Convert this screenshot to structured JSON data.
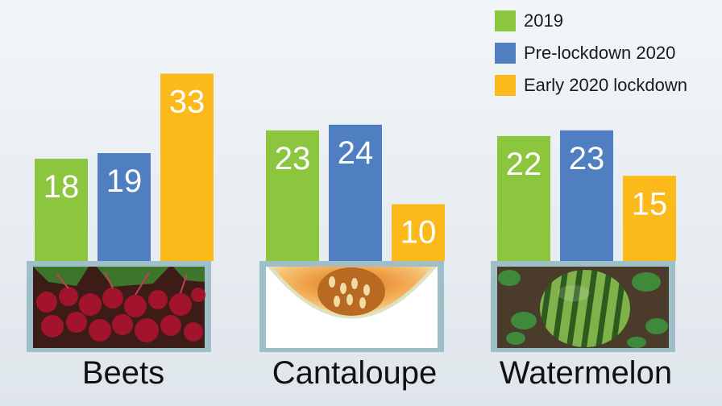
{
  "chart_data": {
    "type": "bar",
    "categories": [
      "Beets",
      "Cantaloupe",
      "Watermelon"
    ],
    "series": [
      {
        "name": "2019",
        "color": "#8cc63f",
        "values": [
          18,
          23,
          22
        ]
      },
      {
        "name": "Pre-lockdown 2020",
        "color": "#4f7fc0",
        "values": [
          19,
          24,
          23
        ]
      },
      {
        "name": "Early 2020 lockdown",
        "color": "#fbb91a",
        "values": [
          33,
          10,
          15
        ]
      }
    ],
    "legend_position": "top-right",
    "grid": false,
    "category_images": [
      "beets-photo",
      "cantaloupe-photo",
      "watermelon-photo"
    ]
  }
}
